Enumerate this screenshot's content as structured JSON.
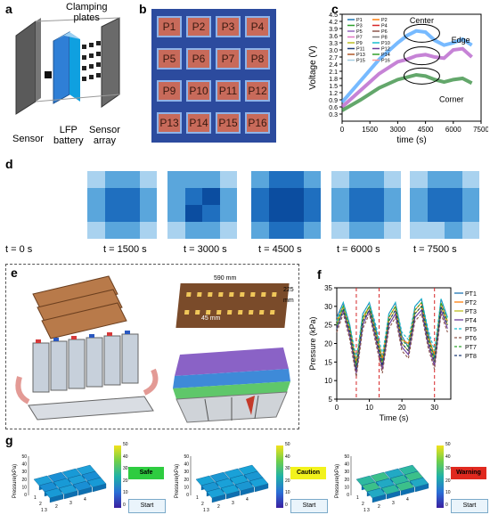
{
  "panels": {
    "a": {
      "label": "a",
      "clamping_plates": "Clamping\nplates",
      "sensor": "Sensor",
      "battery": "LFP\nbattery",
      "sensor_array": "Sensor\narray"
    },
    "b": {
      "label": "b",
      "pads": [
        "P1",
        "P2",
        "P3",
        "P4",
        "P5",
        "P6",
        "P7",
        "P8",
        "P9",
        "P10",
        "P11",
        "P12",
        "P13",
        "P14",
        "P15",
        "P16"
      ]
    },
    "c": {
      "label": "c",
      "annotations": {
        "center": "Center",
        "edge": "Edge",
        "corner": "Corner"
      }
    },
    "d": {
      "label": "d",
      "times": [
        "t = 0 s",
        "t = 1500 s",
        "t = 3000 s",
        "t = 4500 s",
        "t = 6000 s",
        "t = 7500 s"
      ],
      "colors": {
        "light": "#a9d2ef",
        "mid": "#5aa6dc",
        "dark": "#1f6fbf",
        "deep": "#0b4da0"
      }
    },
    "e": {
      "label": "e",
      "dim_width": "590 mm",
      "dim_height": "225\nmm",
      "dim_spacing": "45 mm"
    },
    "f": {
      "label": "f"
    },
    "g": {
      "label": "g",
      "ylabel": "Pressure(kPa)",
      "colorbar_ticks": [
        "50",
        "40",
        "30",
        "20",
        "10",
        "0"
      ],
      "status": [
        {
          "text": "Safe",
          "color": "#2ecc40"
        },
        {
          "text": "Caution",
          "color": "#f2f21c"
        },
        {
          "text": "Warning",
          "color": "#e0291f"
        }
      ],
      "start_button": "Start",
      "axis_x": [
        "1",
        "2",
        "3",
        "4"
      ],
      "axis_y": [
        "1",
        "2",
        "3"
      ]
    }
  },
  "chart_data": [
    {
      "type": "line",
      "panel": "c",
      "xlabel": "time (s)",
      "ylabel": "Voltage (V)",
      "xlim": [
        0,
        7500
      ],
      "ylim": [
        0.0,
        4.5
      ],
      "xticks": [
        "0",
        "1500",
        "3000",
        "4500",
        "6000",
        "7500"
      ],
      "yticks": [
        "0.3",
        "0.6",
        "0.9",
        "1.2",
        "1.5",
        "1.8",
        "2.1",
        "2.4",
        "2.7",
        "3.0",
        "3.3",
        "3.6",
        "3.9",
        "4.2",
        "4.5"
      ],
      "legend": [
        "P1",
        "P2",
        "P3",
        "P4",
        "P5",
        "P6",
        "P7",
        "P8",
        "P9",
        "P10",
        "P11",
        "P12",
        "P13",
        "P14",
        "P15",
        "P16"
      ],
      "series": [
        {
          "name": "Center",
          "color": "#4aa3ff",
          "x": [
            0,
            1000,
            2000,
            3000,
            3500,
            4000,
            4500,
            5000,
            5500,
            6000,
            6500,
            7000
          ],
          "y": [
            0.8,
            1.7,
            2.6,
            3.3,
            3.6,
            3.8,
            3.75,
            3.4,
            3.2,
            3.3,
            3.45,
            3.2
          ]
        },
        {
          "name": "Edge",
          "color": "#b35ac8",
          "x": [
            0,
            1000,
            2000,
            3000,
            3500,
            4000,
            4500,
            5000,
            5500,
            6000,
            6500,
            7000
          ],
          "y": [
            0.6,
            1.3,
            2.0,
            2.5,
            2.6,
            2.75,
            2.8,
            2.7,
            2.65,
            3.0,
            3.05,
            2.7
          ]
        },
        {
          "name": "Corner",
          "color": "#2f8a3a",
          "x": [
            0,
            1000,
            2000,
            3000,
            3500,
            4000,
            4500,
            5000,
            5500,
            6000,
            6500,
            7000
          ],
          "y": [
            0.45,
            0.9,
            1.4,
            1.75,
            1.85,
            1.95,
            1.9,
            1.75,
            1.65,
            1.75,
            1.8,
            1.6
          ]
        }
      ]
    },
    {
      "type": "line",
      "panel": "f",
      "xlabel": "Time (s)",
      "ylabel": "Pressure (kPa)",
      "xlim": [
        0,
        35
      ],
      "ylim": [
        5,
        35
      ],
      "xticks": [
        "0",
        "10",
        "20",
        "30"
      ],
      "yticks": [
        "5",
        "10",
        "15",
        "20",
        "25",
        "30",
        "35"
      ],
      "series": [
        {
          "name": "PT1",
          "color": "#1f77b4",
          "x": [
            0,
            2,
            4,
            6,
            8,
            10,
            12,
            14,
            16,
            18,
            20,
            22,
            24,
            26,
            28,
            30,
            32,
            34
          ],
          "y": [
            27,
            31,
            25,
            14,
            28,
            31,
            24,
            15,
            28,
            31,
            22,
            19,
            30,
            32,
            23,
            16,
            32,
            27
          ]
        },
        {
          "name": "PT2",
          "color": "#ff7f0e",
          "x": [
            0,
            2,
            4,
            6,
            8,
            10,
            12,
            14,
            16,
            18,
            20,
            22,
            24,
            26,
            28,
            30,
            32,
            34
          ],
          "y": [
            26,
            30,
            24,
            15,
            27,
            30,
            23,
            16,
            27,
            30,
            21,
            20,
            29,
            31,
            22,
            17,
            31,
            26
          ]
        },
        {
          "name": "PT3",
          "color": "#bcbd22",
          "x": [
            0,
            2,
            4,
            6,
            8,
            10,
            12,
            14,
            16,
            18,
            20,
            22,
            24,
            26,
            28,
            30,
            32,
            34
          ],
          "y": [
            25,
            30,
            23,
            13,
            26,
            30,
            22,
            14,
            26,
            29,
            20,
            18,
            28,
            30,
            21,
            15,
            30,
            25
          ]
        },
        {
          "name": "PT4",
          "color": "#6a3d9a",
          "x": [
            0,
            2,
            4,
            6,
            8,
            10,
            12,
            14,
            16,
            18,
            20,
            22,
            24,
            26,
            28,
            30,
            32,
            34
          ],
          "y": [
            24,
            29,
            22,
            12,
            25,
            29,
            21,
            13,
            25,
            28,
            19,
            17,
            27,
            29,
            20,
            14,
            29,
            24
          ]
        },
        {
          "name": "PT5",
          "color": "#17becf",
          "x": [
            0,
            2,
            4,
            6,
            8,
            10,
            12,
            14,
            16,
            18,
            20,
            22,
            24,
            26,
            28,
            30,
            32,
            34
          ],
          "y": [
            26,
            31,
            25,
            16,
            28,
            31,
            25,
            17,
            28,
            31,
            23,
            21,
            30,
            32,
            24,
            18,
            32,
            27
          ]
        },
        {
          "name": "PT6",
          "color": "#8c564b",
          "x": [
            0,
            2,
            4,
            6,
            8,
            10,
            12,
            14,
            16,
            18,
            20,
            22,
            24,
            26,
            28,
            30,
            32,
            34
          ],
          "y": [
            23,
            28,
            21,
            11,
            24,
            28,
            20,
            12,
            24,
            27,
            18,
            16,
            26,
            28,
            19,
            13,
            28,
            23
          ]
        },
        {
          "name": "PT7",
          "color": "#2ca02c",
          "x": [
            0,
            2,
            4,
            6,
            8,
            10,
            12,
            14,
            16,
            18,
            20,
            22,
            24,
            26,
            28,
            30,
            32,
            34
          ],
          "y": [
            25,
            30,
            24,
            14,
            27,
            30,
            23,
            15,
            27,
            30,
            21,
            19,
            29,
            31,
            22,
            16,
            31,
            26
          ]
        },
        {
          "name": "PT8",
          "color": "#1f3b73",
          "x": [
            0,
            2,
            4,
            6,
            8,
            10,
            12,
            14,
            16,
            18,
            20,
            22,
            24,
            26,
            28,
            30,
            32,
            34
          ],
          "y": [
            24,
            29,
            23,
            13,
            26,
            29,
            22,
            14,
            26,
            29,
            20,
            18,
            28,
            30,
            21,
            15,
            30,
            25
          ]
        }
      ],
      "markers_x": [
        6,
        13,
        30
      ]
    }
  ]
}
